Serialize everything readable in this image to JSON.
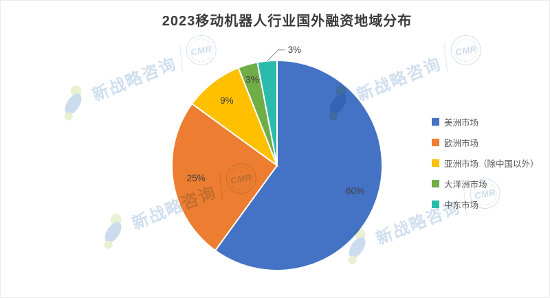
{
  "chart_data": {
    "type": "pie",
    "title": "2023移动机器人行业国外融资地域分布",
    "legend_position": "right",
    "direction": "clockwise",
    "start_angle_deg": 0,
    "label_color": "#3f3f3f",
    "leader_line_color": "#7f7f7f",
    "categories": [
      "美洲市场",
      "欧洲市场",
      "亚洲市场（除中国以外）",
      "大洋洲市场",
      "中东市场"
    ],
    "values": [
      60,
      25,
      9,
      3,
      3
    ],
    "slices": [
      {
        "name": "美洲市场",
        "value": 60,
        "label": "60%",
        "color": "#4472C4",
        "label_outside": false
      },
      {
        "name": "欧洲市场",
        "value": 25,
        "label": "25%",
        "color": "#ED7D31",
        "label_outside": false
      },
      {
        "name": "亚洲市场（除中国以外）",
        "value": 9,
        "label": "9%",
        "color": "#FFC000",
        "label_outside": false
      },
      {
        "name": "大洋洲市场",
        "value": 3,
        "label": "3%",
        "color": "#70AD47",
        "label_outside": false
      },
      {
        "name": "中东市场",
        "value": 3,
        "label": "3%",
        "color": "#2BBBAC",
        "label_outside": true
      }
    ]
  },
  "watermark": {
    "text": "新战略咨询",
    "stamp_text": "CMR",
    "text_color": "#a9c4e2",
    "logo_blue": "#9fc0de",
    "logo_green": "#d7e6ad"
  }
}
